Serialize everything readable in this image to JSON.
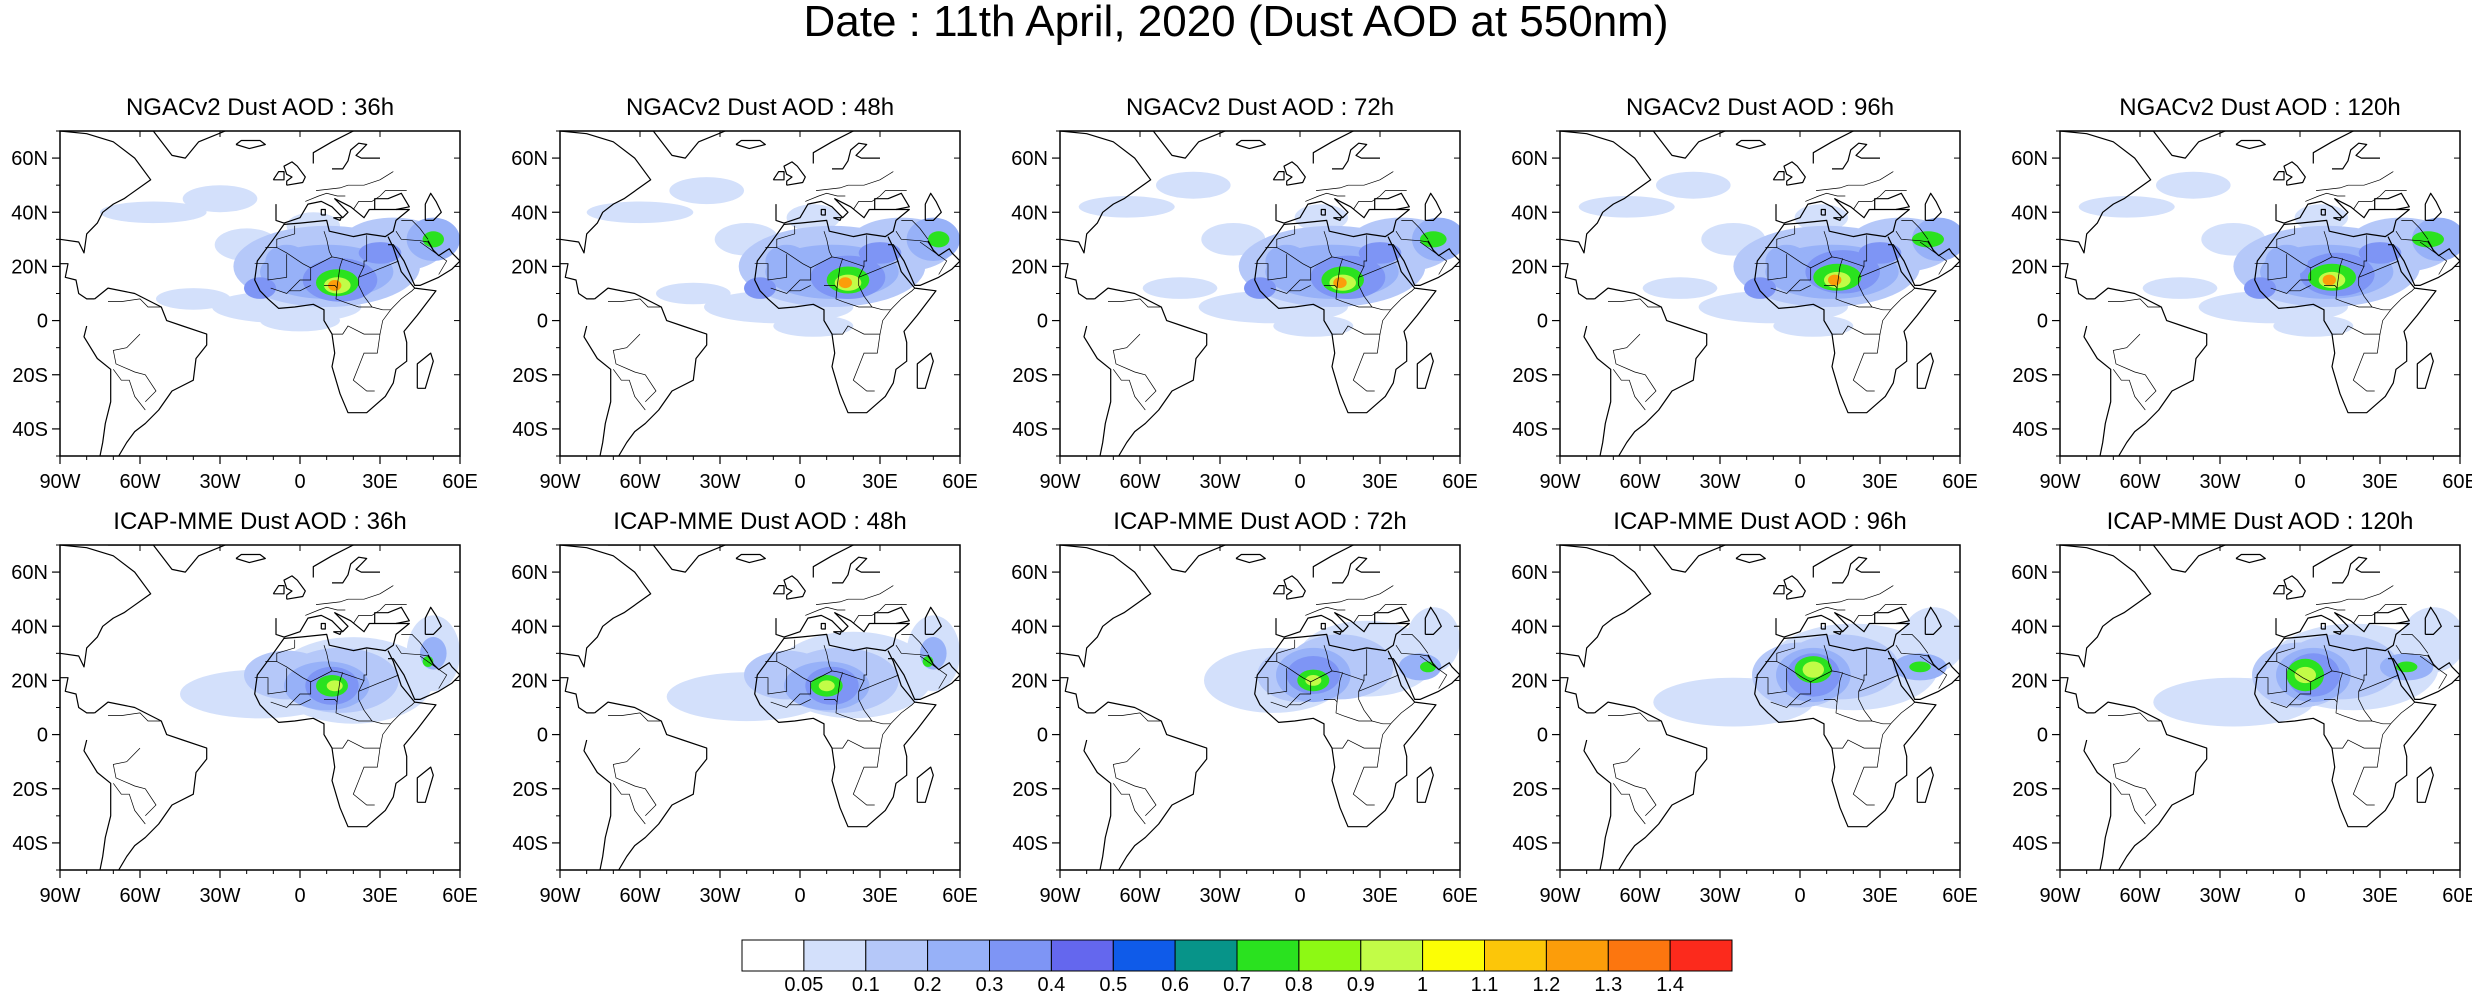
{
  "title": "Date : 11th April, 2020 (Dust AOD at 550nm)",
  "rows": [
    {
      "model": "NGACv2",
      "panels": [
        {
          "title": "NGACv2 Dust AOD : 36h"
        },
        {
          "title": "NGACv2 Dust AOD : 48h"
        },
        {
          "title": "NGACv2 Dust AOD : 72h"
        },
        {
          "title": "NGACv2 Dust AOD : 96h"
        },
        {
          "title": "NGACv2 Dust AOD : 120h"
        }
      ]
    },
    {
      "model": "ICAP-MME",
      "panels": [
        {
          "title": "ICAP-MME Dust AOD : 36h"
        },
        {
          "title": "ICAP-MME Dust AOD : 48h"
        },
        {
          "title": "ICAP-MME Dust AOD : 72h"
        },
        {
          "title": "ICAP-MME Dust AOD : 96h"
        },
        {
          "title": "ICAP-MME Dust AOD : 120h"
        }
      ]
    }
  ],
  "lat_ticks": [
    "60N",
    "40N",
    "20N",
    "0",
    "20S",
    "40S"
  ],
  "lat_values": [
    60,
    40,
    20,
    0,
    -20,
    -40
  ],
  "lon_ticks": [
    "90W",
    "60W",
    "30W",
    "0",
    "30E",
    "60E"
  ],
  "lon_values": [
    -90,
    -60,
    -30,
    0,
    30,
    60
  ],
  "map_extent": {
    "lon": [
      -90,
      60
    ],
    "lat": [
      -50,
      70
    ]
  },
  "colorbar": {
    "labels": [
      "0.05",
      "0.1",
      "0.2",
      "0.3",
      "0.4",
      "0.5",
      "0.6",
      "0.7",
      "0.8",
      "0.9",
      "1",
      "1.1",
      "1.2",
      "1.3",
      "1.4"
    ],
    "colors": [
      "#ffffff",
      "#d3e0fb",
      "#b5c8f9",
      "#97b1f8",
      "#7e95f5",
      "#6467ee",
      "#0f5be9",
      "#079489",
      "#2ae21f",
      "#8df914",
      "#c2fc47",
      "#fcfe05",
      "#fcc609",
      "#fc9d0a",
      "#fc760f",
      "#fc2a1c"
    ]
  },
  "colors": {
    "land_outline": "#000000"
  }
}
